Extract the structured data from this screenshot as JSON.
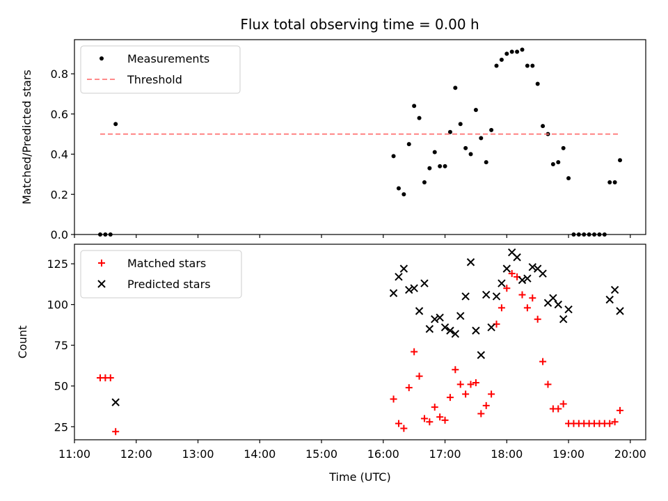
{
  "chart_data": [
    {
      "type": "scatter",
      "title": "Flux total observing time = 0.00 h",
      "xlabel": "",
      "ylabel": "Matched/Predicted stars",
      "xlim": [
        "11:00",
        "20:15"
      ],
      "ylim": [
        0,
        0.97
      ],
      "yticks": [
        0.0,
        0.2,
        0.4,
        0.6,
        0.8
      ],
      "ytick_labels": [
        "0.0",
        "0.2",
        "0.4",
        "0.6",
        "0.8"
      ],
      "xticks": [
        "11:00",
        "12:00",
        "13:00",
        "14:00",
        "15:00",
        "16:00",
        "17:00",
        "18:00",
        "19:00",
        "20:00"
      ],
      "xtick_labels": [],
      "legend_position": "top-left",
      "series": [
        {
          "name": "Measurements",
          "color": "#000000",
          "marker": "dot",
          "x": [
            "11:25",
            "11:30",
            "11:35",
            "11:40",
            "16:10",
            "16:15",
            "16:20",
            "16:25",
            "16:30",
            "16:35",
            "16:40",
            "16:45",
            "16:50",
            "16:55",
            "17:00",
            "17:05",
            "17:10",
            "17:15",
            "17:20",
            "17:25",
            "17:30",
            "17:35",
            "17:40",
            "17:45",
            "17:50",
            "17:55",
            "18:00",
            "18:05",
            "18:10",
            "18:15",
            "18:20",
            "18:25",
            "18:30",
            "18:35",
            "18:40",
            "18:45",
            "18:50",
            "18:55",
            "19:00",
            "19:05",
            "19:10",
            "19:15",
            "19:20",
            "19:25",
            "19:30",
            "19:35",
            "19:40",
            "19:45",
            "19:50"
          ],
          "y": [
            0.0,
            0.0,
            0.0,
            0.55,
            0.39,
            0.23,
            0.2,
            0.45,
            0.64,
            0.58,
            0.26,
            0.33,
            0.41,
            0.34,
            0.34,
            0.51,
            0.73,
            0.55,
            0.43,
            0.4,
            0.62,
            0.48,
            0.36,
            0.52,
            0.84,
            0.87,
            0.9,
            0.91,
            0.91,
            0.92,
            0.84,
            0.84,
            0.75,
            0.54,
            0.5,
            0.35,
            0.36,
            0.43,
            0.28,
            0.0,
            0.0,
            0.0,
            0.0,
            0.0,
            0.0,
            0.0,
            0.26,
            0.26,
            0.37
          ]
        },
        {
          "name": "Threshold",
          "color": "#ff7a7a",
          "style": "dashed",
          "x": [
            "11:25",
            "19:50"
          ],
          "y": [
            0.5,
            0.5
          ]
        }
      ]
    },
    {
      "type": "scatter",
      "title": "",
      "xlabel": "Time (UTC)",
      "ylabel": "Count",
      "xlim": [
        "11:00",
        "20:15"
      ],
      "ylim": [
        17,
        137
      ],
      "yticks": [
        25,
        50,
        75,
        100,
        125
      ],
      "ytick_labels": [
        "25",
        "50",
        "75",
        "100",
        "125"
      ],
      "xticks": [
        "11:00",
        "12:00",
        "13:00",
        "14:00",
        "15:00",
        "16:00",
        "17:00",
        "18:00",
        "19:00",
        "20:00"
      ],
      "xtick_labels": [
        "11:00",
        "12:00",
        "13:00",
        "14:00",
        "15:00",
        "16:00",
        "17:00",
        "18:00",
        "19:00",
        "20:00"
      ],
      "legend_position": "top-left",
      "series": [
        {
          "name": "Matched stars",
          "color": "#ff0000",
          "marker": "plus",
          "x": [
            "11:25",
            "11:30",
            "11:35",
            "11:40",
            "16:10",
            "16:15",
            "16:20",
            "16:25",
            "16:30",
            "16:35",
            "16:40",
            "16:45",
            "16:50",
            "16:55",
            "17:00",
            "17:05",
            "17:10",
            "17:15",
            "17:20",
            "17:25",
            "17:30",
            "17:35",
            "17:40",
            "17:45",
            "17:50",
            "17:55",
            "18:00",
            "18:05",
            "18:10",
            "18:15",
            "18:20",
            "18:25",
            "18:30",
            "18:35",
            "18:40",
            "18:45",
            "18:50",
            "18:55",
            "19:00",
            "19:05",
            "19:10",
            "19:15",
            "19:20",
            "19:25",
            "19:30",
            "19:35",
            "19:40",
            "19:45",
            "19:50"
          ],
          "y": [
            55,
            55,
            55,
            22,
            42,
            27,
            24,
            49,
            71,
            56,
            30,
            28,
            37,
            31,
            29,
            43,
            60,
            51,
            45,
            51,
            52,
            33,
            38,
            45,
            88,
            98,
            110,
            119,
            117,
            106,
            98,
            104,
            91,
            65,
            51,
            36,
            36,
            39,
            27,
            27,
            27,
            27,
            27,
            27,
            27,
            27,
            27,
            28,
            35
          ]
        },
        {
          "name": "Predicted stars",
          "color": "#000000",
          "marker": "x",
          "x": [
            "11:40",
            "16:10",
            "16:15",
            "16:20",
            "16:25",
            "16:30",
            "16:35",
            "16:40",
            "16:45",
            "16:50",
            "16:55",
            "17:00",
            "17:05",
            "17:10",
            "17:15",
            "17:20",
            "17:25",
            "17:30",
            "17:35",
            "17:40",
            "17:45",
            "17:50",
            "17:55",
            "18:00",
            "18:05",
            "18:10",
            "18:15",
            "18:20",
            "18:25",
            "18:30",
            "18:35",
            "18:40",
            "18:45",
            "18:50",
            "18:55",
            "19:00",
            "19:40",
            "19:45",
            "19:50"
          ],
          "y": [
            40,
            107,
            117,
            122,
            109,
            110,
            96,
            113,
            85,
            91,
            92,
            86,
            84,
            82,
            93,
            105,
            126,
            84,
            69,
            106,
            86,
            105,
            113,
            122,
            132,
            129,
            115,
            116,
            123,
            122,
            119,
            101,
            104,
            100,
            91,
            97,
            103,
            109,
            96
          ]
        }
      ]
    }
  ]
}
